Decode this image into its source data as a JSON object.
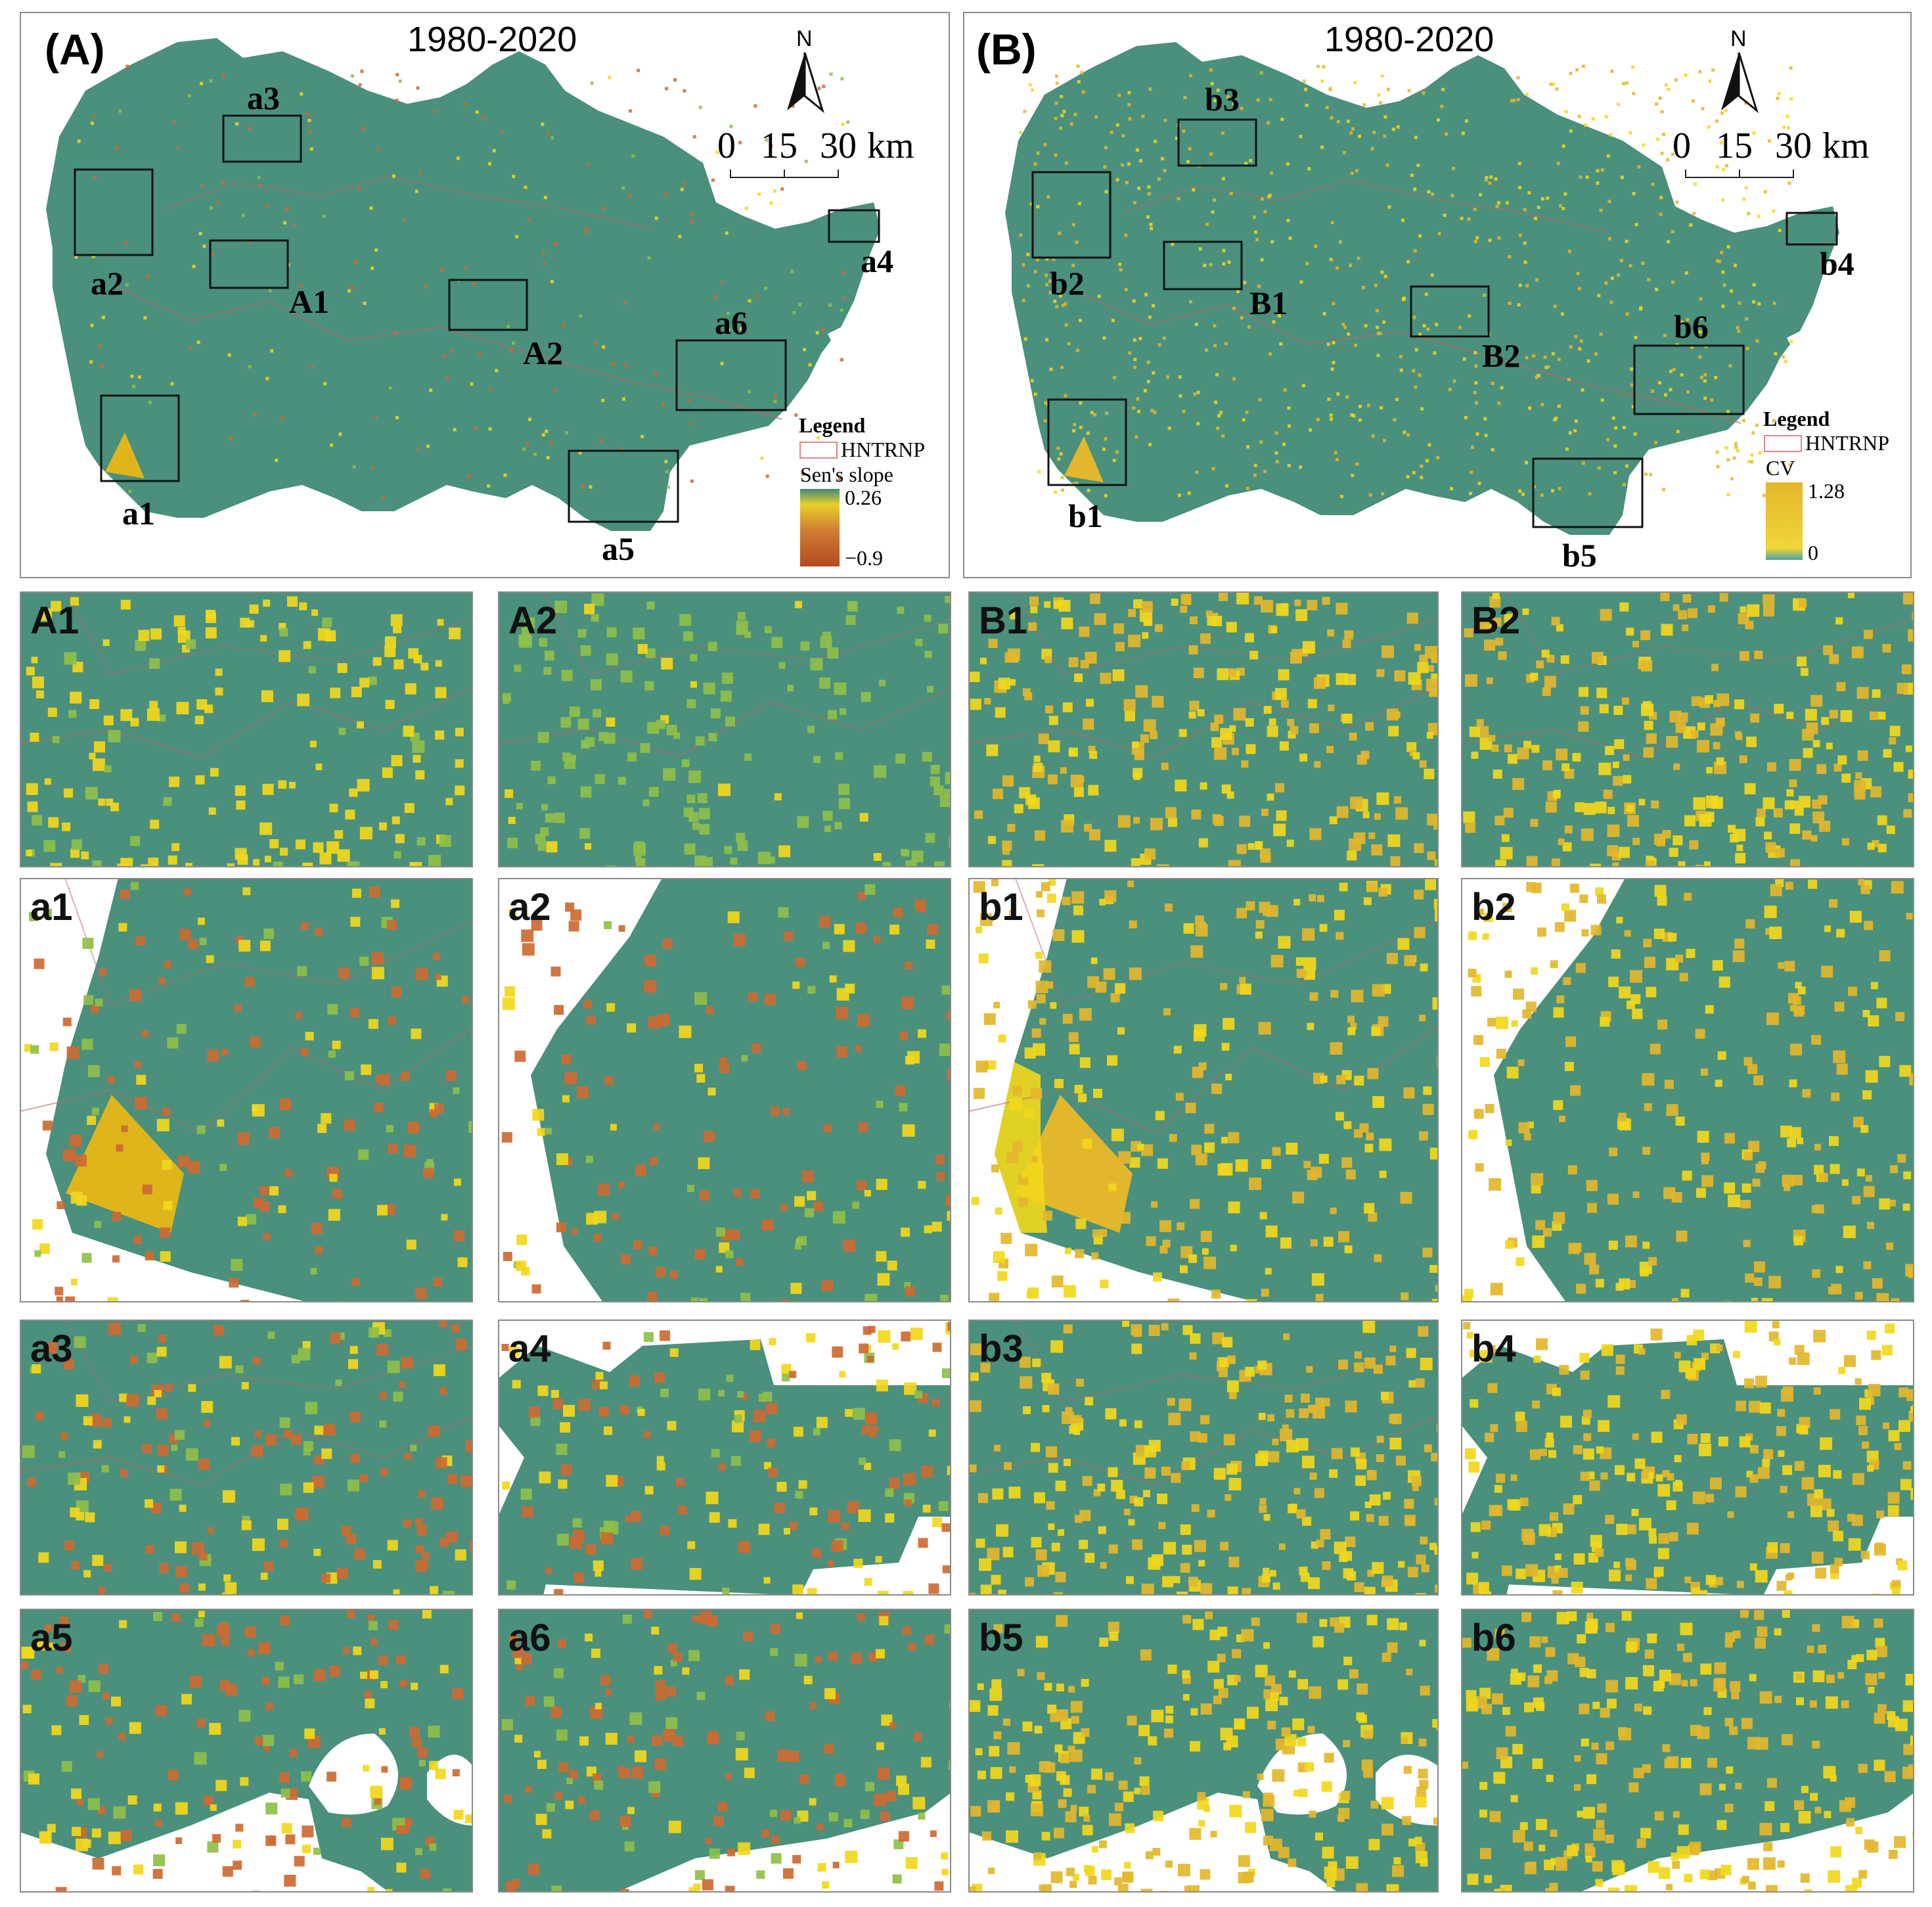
{
  "colors": {
    "teal": "#4a907c",
    "teal_dark": "#3f8570",
    "yellow": "#f2d81c",
    "gold": "#e3b72c",
    "orange": "#cd6a32",
    "light_green": "#8fbf4a",
    "boundary": "#b06a6a",
    "frame": "#8a8a8a"
  },
  "panel_a": {
    "letter": "(A)",
    "period": "1980-2020",
    "north": "N",
    "scale": {
      "t0": "0",
      "t1": "15",
      "t2": "30",
      "unit": "km"
    },
    "legend": {
      "title": "Legend",
      "boundary_label": "HNTRNP",
      "variable": "Sen's slope",
      "max": "0.26",
      "min": "−0.9"
    },
    "region_labels": [
      "a1",
      "a2",
      "a3",
      "a4",
      "a5",
      "a6",
      "A1",
      "A2"
    ]
  },
  "panel_b": {
    "letter": "(B)",
    "period": "1980-2020",
    "north": "N",
    "scale": {
      "t0": "0",
      "t1": "15",
      "t2": "30",
      "unit": "km"
    },
    "legend": {
      "title": "Legend",
      "boundary_label": "HNTRNP",
      "variable": "CV",
      "max": "1.28",
      "min": "0"
    },
    "region_labels": [
      "b1",
      "b2",
      "b3",
      "b4",
      "b5",
      "b6",
      "B1",
      "B2"
    ]
  },
  "zoom_panels": [
    {
      "id": "A1",
      "kind": "sen"
    },
    {
      "id": "A2",
      "kind": "sen"
    },
    {
      "id": "B1",
      "kind": "cv"
    },
    {
      "id": "B2",
      "kind": "cv"
    },
    {
      "id": "a1",
      "kind": "sen"
    },
    {
      "id": "a2",
      "kind": "sen"
    },
    {
      "id": "b1",
      "kind": "cv"
    },
    {
      "id": "b2",
      "kind": "cv"
    },
    {
      "id": "a3",
      "kind": "sen"
    },
    {
      "id": "a4",
      "kind": "sen"
    },
    {
      "id": "b3",
      "kind": "cv"
    },
    {
      "id": "b4",
      "kind": "cv"
    },
    {
      "id": "a5",
      "kind": "sen"
    },
    {
      "id": "a6",
      "kind": "sen"
    },
    {
      "id": "b5",
      "kind": "cv"
    },
    {
      "id": "b6",
      "kind": "cv"
    }
  ]
}
